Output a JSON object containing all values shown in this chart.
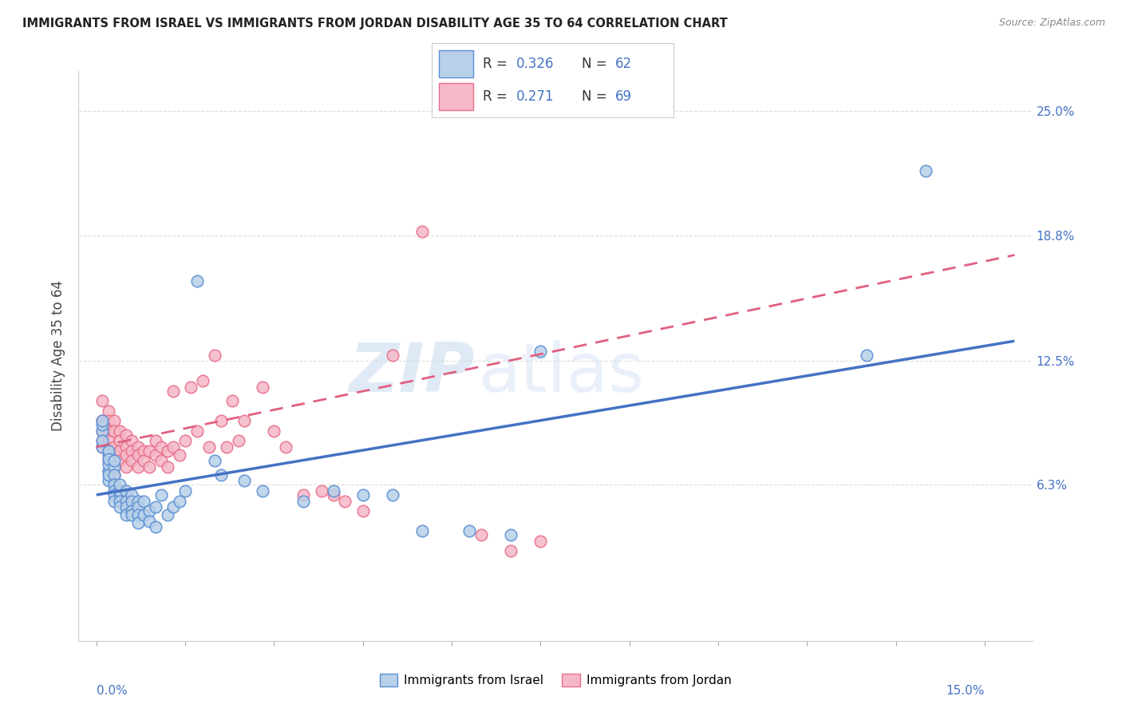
{
  "title": "IMMIGRANTS FROM ISRAEL VS IMMIGRANTS FROM JORDAN DISABILITY AGE 35 TO 64 CORRELATION CHART",
  "source": "Source: ZipAtlas.com",
  "ylabel": "Disability Age 35 to 64",
  "y_tick_labels": [
    "6.3%",
    "12.5%",
    "18.8%",
    "25.0%"
  ],
  "y_tick_values": [
    0.063,
    0.125,
    0.188,
    0.25
  ],
  "x_tick_labels": [
    "0.0%",
    "15.0%"
  ],
  "x_tick_values": [
    0.0,
    0.15
  ],
  "xlim": [
    -0.003,
    0.158
  ],
  "ylim": [
    -0.015,
    0.27
  ],
  "legend_israel_r": "0.326",
  "legend_israel_n": "62",
  "legend_jordan_r": "0.271",
  "legend_jordan_n": "69",
  "color_israel_fill": "#b8d0e8",
  "color_jordan_fill": "#f5b8c8",
  "color_israel_edge": "#5b8fd4",
  "color_jordan_edge": "#e8708a",
  "color_israel_line": "#4472c4",
  "color_jordan_line": "#e06080",
  "color_blue_text": "#4472c4",
  "background_color": "#ffffff",
  "watermark_zip": "ZIP",
  "watermark_atlas": "atlas",
  "israel_x": [
    0.001,
    0.001,
    0.001,
    0.001,
    0.001,
    0.002,
    0.002,
    0.002,
    0.002,
    0.002,
    0.002,
    0.002,
    0.003,
    0.003,
    0.003,
    0.003,
    0.003,
    0.003,
    0.003,
    0.004,
    0.004,
    0.004,
    0.004,
    0.004,
    0.005,
    0.005,
    0.005,
    0.005,
    0.006,
    0.006,
    0.006,
    0.006,
    0.007,
    0.007,
    0.007,
    0.007,
    0.008,
    0.008,
    0.009,
    0.009,
    0.01,
    0.01,
    0.011,
    0.012,
    0.013,
    0.014,
    0.015,
    0.017,
    0.02,
    0.021,
    0.025,
    0.028,
    0.035,
    0.04,
    0.045,
    0.05,
    0.055,
    0.063,
    0.07,
    0.075,
    0.13,
    0.14
  ],
  "israel_y": [
    0.09,
    0.093,
    0.095,
    0.082,
    0.085,
    0.078,
    0.08,
    0.07,
    0.073,
    0.076,
    0.065,
    0.068,
    0.072,
    0.075,
    0.068,
    0.063,
    0.06,
    0.058,
    0.055,
    0.058,
    0.06,
    0.063,
    0.055,
    0.052,
    0.06,
    0.055,
    0.052,
    0.048,
    0.058,
    0.055,
    0.05,
    0.048,
    0.055,
    0.052,
    0.048,
    0.044,
    0.055,
    0.048,
    0.05,
    0.045,
    0.052,
    0.042,
    0.058,
    0.048,
    0.052,
    0.055,
    0.06,
    0.165,
    0.075,
    0.068,
    0.065,
    0.06,
    0.055,
    0.06,
    0.058,
    0.058,
    0.04,
    0.04,
    0.038,
    0.13,
    0.128,
    0.22
  ],
  "jordan_x": [
    0.001,
    0.001,
    0.001,
    0.001,
    0.001,
    0.002,
    0.002,
    0.002,
    0.002,
    0.002,
    0.002,
    0.002,
    0.003,
    0.003,
    0.003,
    0.003,
    0.003,
    0.003,
    0.004,
    0.004,
    0.004,
    0.004,
    0.005,
    0.005,
    0.005,
    0.005,
    0.006,
    0.006,
    0.006,
    0.007,
    0.007,
    0.007,
    0.008,
    0.008,
    0.009,
    0.009,
    0.01,
    0.01,
    0.011,
    0.011,
    0.012,
    0.012,
    0.013,
    0.013,
    0.014,
    0.015,
    0.016,
    0.017,
    0.018,
    0.019,
    0.02,
    0.021,
    0.022,
    0.023,
    0.024,
    0.025,
    0.028,
    0.03,
    0.032,
    0.035,
    0.038,
    0.04,
    0.042,
    0.045,
    0.05,
    0.055,
    0.065,
    0.07,
    0.075
  ],
  "jordan_y": [
    0.105,
    0.095,
    0.09,
    0.085,
    0.082,
    0.1,
    0.095,
    0.09,
    0.085,
    0.08,
    0.075,
    0.07,
    0.095,
    0.09,
    0.082,
    0.078,
    0.072,
    0.068,
    0.09,
    0.085,
    0.08,
    0.075,
    0.088,
    0.082,
    0.078,
    0.072,
    0.085,
    0.08,
    0.075,
    0.082,
    0.078,
    0.072,
    0.08,
    0.075,
    0.08,
    0.072,
    0.085,
    0.078,
    0.082,
    0.075,
    0.08,
    0.072,
    0.082,
    0.11,
    0.078,
    0.085,
    0.112,
    0.09,
    0.115,
    0.082,
    0.128,
    0.095,
    0.082,
    0.105,
    0.085,
    0.095,
    0.112,
    0.09,
    0.082,
    0.058,
    0.06,
    0.058,
    0.055,
    0.05,
    0.128,
    0.19,
    0.038,
    0.03,
    0.035
  ],
  "israel_line_x": [
    0.0,
    0.155
  ],
  "israel_line_y": [
    0.058,
    0.135
  ],
  "jordan_line_x": [
    0.0,
    0.155
  ],
  "jordan_line_y": [
    0.082,
    0.178
  ]
}
